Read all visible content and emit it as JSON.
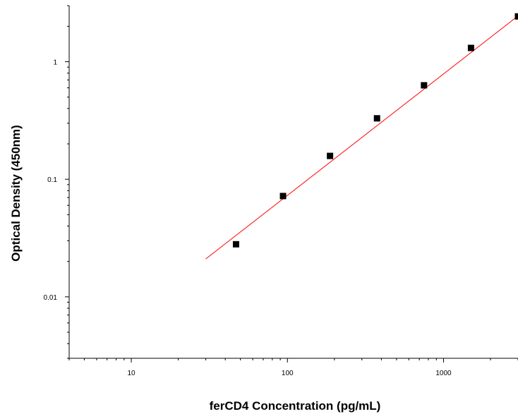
{
  "chart_data": {
    "type": "scatter",
    "title": "",
    "xlabel": "ferCD4 Concentration (pg/mL)",
    "ylabel": "Optical Density (450nm)",
    "x_scale": "log",
    "y_scale": "log",
    "xlim": [
      4,
      3000
    ],
    "ylim": [
      0.003,
      3
    ],
    "x_ticks": [
      {
        "value": 10,
        "label": "10"
      },
      {
        "value": 100,
        "label": "100"
      },
      {
        "value": 1000,
        "label": "1000"
      }
    ],
    "y_ticks": [
      {
        "value": 0.01,
        "label": "0.01"
      },
      {
        "value": 0.1,
        "label": "0.1"
      },
      {
        "value": 1,
        "label": "1"
      }
    ],
    "grid": false,
    "legend": "none",
    "series": [
      {
        "type": "scatter",
        "color": "#000000",
        "marker": "square",
        "points": [
          {
            "x": 46.875,
            "y": 0.028
          },
          {
            "x": 93.75,
            "y": 0.072
          },
          {
            "x": 187.5,
            "y": 0.158
          },
          {
            "x": 375,
            "y": 0.33
          },
          {
            "x": 750,
            "y": 0.63
          },
          {
            "x": 1500,
            "y": 1.31
          },
          {
            "x": 3000,
            "y": 2.43
          }
        ]
      },
      {
        "type": "line",
        "color": "#ff0000",
        "points": [
          {
            "x": 30,
            "y": 0.021
          },
          {
            "x": 3000,
            "y": 2.45
          }
        ]
      }
    ]
  }
}
